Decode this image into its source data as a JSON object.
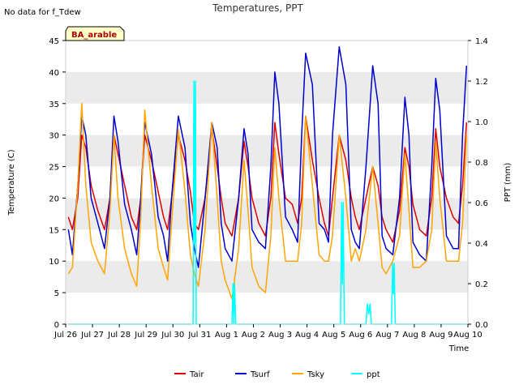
{
  "note": "No data for f_Tdew",
  "chart_data": {
    "type": "line",
    "title": "Temperatures, PPT",
    "xlabel": "Time",
    "ylabel": "Temperature (C)",
    "y2label": "PPT (mm)",
    "badge": "BA_arable",
    "ylim": [
      0,
      45
    ],
    "y2lim": [
      0,
      1.4
    ],
    "xlim": [
      0,
      15
    ],
    "yticks": [
      "0",
      "5",
      "10",
      "15",
      "20",
      "25",
      "30",
      "35",
      "40",
      "45"
    ],
    "y2ticks": [
      "0.0",
      "0.2",
      "0.4",
      "0.6",
      "0.8",
      "1.0",
      "1.2",
      "1.4"
    ],
    "xticks": [
      "Jul 26",
      "Jul 27",
      "Jul 28",
      "Jul 29",
      "Jul 30",
      "Jul 31",
      "Aug 1",
      "Aug 2",
      "Aug 3",
      "Aug 4",
      "Aug 5",
      "Aug 6",
      "Aug 7",
      "Aug 8",
      "Aug 9",
      "Aug 10"
    ],
    "grid": "horizontal bands",
    "legend_position": "bottom",
    "series": [
      {
        "name": "Tair",
        "color": "#dd0000",
        "x": [
          0.1,
          0.25,
          0.45,
          0.6,
          0.75,
          0.95,
          1.2,
          1.45,
          1.65,
          1.8,
          1.95,
          2.2,
          2.45,
          2.65,
          2.8,
          2.95,
          3.2,
          3.45,
          3.65,
          3.8,
          3.95,
          4.2,
          4.45,
          4.65,
          4.8,
          4.95,
          5.2,
          5.45,
          5.65,
          5.8,
          5.95,
          6.2,
          6.45,
          6.65,
          6.8,
          6.95,
          7.2,
          7.45,
          7.65,
          7.8,
          7.95,
          8.2,
          8.45,
          8.65,
          8.8,
          8.95,
          9.2,
          9.45,
          9.65,
          9.8,
          9.95,
          10.2,
          10.45,
          10.65,
          10.8,
          10.95,
          11.2,
          11.45,
          11.65,
          11.8,
          11.95,
          12.2,
          12.45,
          12.65,
          12.8,
          12.95,
          13.2,
          13.45,
          13.65,
          13.8,
          13.95,
          14.2,
          14.45,
          14.65,
          14.8,
          14.95
        ],
        "y": [
          17,
          15,
          20,
          30,
          28,
          22,
          18,
          15,
          20,
          30,
          27,
          22,
          17,
          15,
          20,
          30,
          26,
          21,
          17,
          15,
          20,
          30,
          26,
          21,
          16,
          15,
          20,
          31,
          25,
          20,
          16,
          14,
          20,
          29,
          25,
          20,
          16,
          14,
          20,
          32,
          27,
          20,
          19,
          16,
          20,
          33,
          26,
          20,
          16,
          14,
          20,
          30,
          26,
          20,
          17,
          15,
          20,
          25,
          22,
          17,
          15,
          13,
          18,
          28,
          25,
          19,
          15,
          14,
          20,
          31,
          25,
          20,
          17,
          16,
          22,
          32
        ]
      },
      {
        "name": "Tsurf",
        "color": "#0000cc",
        "x": [
          0.1,
          0.25,
          0.45,
          0.6,
          0.75,
          0.95,
          1.2,
          1.45,
          1.65,
          1.8,
          1.95,
          2.2,
          2.45,
          2.65,
          2.8,
          2.95,
          3.2,
          3.45,
          3.65,
          3.8,
          3.95,
          4.2,
          4.45,
          4.65,
          4.8,
          4.95,
          5.2,
          5.45,
          5.65,
          5.8,
          5.95,
          6.2,
          6.45,
          6.65,
          6.8,
          6.95,
          7.2,
          7.45,
          7.65,
          7.8,
          7.95,
          8.2,
          8.45,
          8.65,
          8.8,
          8.95,
          9.2,
          9.45,
          9.65,
          9.8,
          9.95,
          10.2,
          10.45,
          10.65,
          10.8,
          10.95,
          11.2,
          11.45,
          11.65,
          11.8,
          11.95,
          12.2,
          12.45,
          12.65,
          12.8,
          12.95,
          13.2,
          13.45,
          13.65,
          13.8,
          13.95,
          14.2,
          14.45,
          14.65,
          14.8,
          14.95
        ],
        "y": [
          15,
          11,
          22,
          33,
          30,
          20,
          16,
          12,
          20,
          33,
          29,
          19,
          15,
          11,
          20,
          32,
          27,
          17,
          14,
          10,
          20,
          33,
          28,
          16,
          12,
          9,
          20,
          32,
          28,
          16,
          12,
          10,
          20,
          31,
          27,
          15,
          13,
          12,
          25,
          40,
          35,
          17,
          15,
          13,
          30,
          43,
          38,
          16,
          15,
          13,
          30,
          44,
          38,
          15,
          13,
          12,
          25,
          41,
          35,
          14,
          12,
          11,
          20,
          36,
          30,
          13,
          11,
          10,
          25,
          39,
          34,
          14,
          12,
          12,
          30,
          41
        ]
      },
      {
        "name": "Tsky",
        "color": "#ffa500",
        "x": [
          0.1,
          0.25,
          0.45,
          0.6,
          0.75,
          0.95,
          1.2,
          1.45,
          1.65,
          1.8,
          1.95,
          2.2,
          2.45,
          2.65,
          2.8,
          2.95,
          3.2,
          3.45,
          3.65,
          3.8,
          3.95,
          4.2,
          4.45,
          4.65,
          4.8,
          4.95,
          5.2,
          5.45,
          5.65,
          5.8,
          5.95,
          6.2,
          6.45,
          6.65,
          6.8,
          6.95,
          7.2,
          7.45,
          7.65,
          7.8,
          7.95,
          8.2,
          8.45,
          8.65,
          8.8,
          8.95,
          9.2,
          9.45,
          9.65,
          9.8,
          9.95,
          10.2,
          10.45,
          10.65,
          10.8,
          10.95,
          11.2,
          11.45,
          11.65,
          11.8,
          11.95,
          12.2,
          12.45,
          12.65,
          12.8,
          12.95,
          13.2,
          13.45,
          13.65,
          13.8,
          13.95,
          14.2,
          14.45,
          14.65,
          14.8,
          14.95
        ],
        "y": [
          8,
          9,
          22,
          35,
          22,
          13,
          10,
          8,
          18,
          30,
          20,
          12,
          8,
          6,
          17,
          34,
          22,
          12,
          9,
          7,
          16,
          31,
          21,
          11,
          8,
          6,
          15,
          32,
          20,
          10,
          7,
          4,
          12,
          26,
          18,
          9,
          6,
          5,
          14,
          28,
          20,
          10,
          10,
          10,
          16,
          33,
          22,
          11,
          10,
          10,
          14,
          30,
          20,
          10,
          12,
          10,
          15,
          25,
          16,
          9,
          8,
          10,
          14,
          27,
          18,
          9,
          9,
          10,
          15,
          29,
          20,
          10,
          10,
          10,
          16,
          30
        ]
      },
      {
        "name": "ppt",
        "color": "#00ffff",
        "axis": "right",
        "x": [
          0.1,
          4.75,
          4.78,
          4.81,
          4.84,
          4.87,
          6.2,
          6.24,
          6.27,
          6.3,
          6.34,
          10.25,
          10.29,
          10.32,
          10.35,
          10.39,
          11.2,
          11.25,
          11.3,
          11.35,
          11.4,
          12.15,
          12.19,
          12.22,
          12.25,
          12.29,
          14.95
        ],
        "y": [
          0,
          0,
          1.2,
          0.4,
          1.2,
          0,
          0,
          0.2,
          0,
          0.2,
          0,
          0,
          0.6,
          0.2,
          0.6,
          0,
          0,
          0.1,
          0.05,
          0.1,
          0,
          0,
          0.3,
          0.15,
          0.3,
          0,
          0
        ]
      }
    ]
  }
}
